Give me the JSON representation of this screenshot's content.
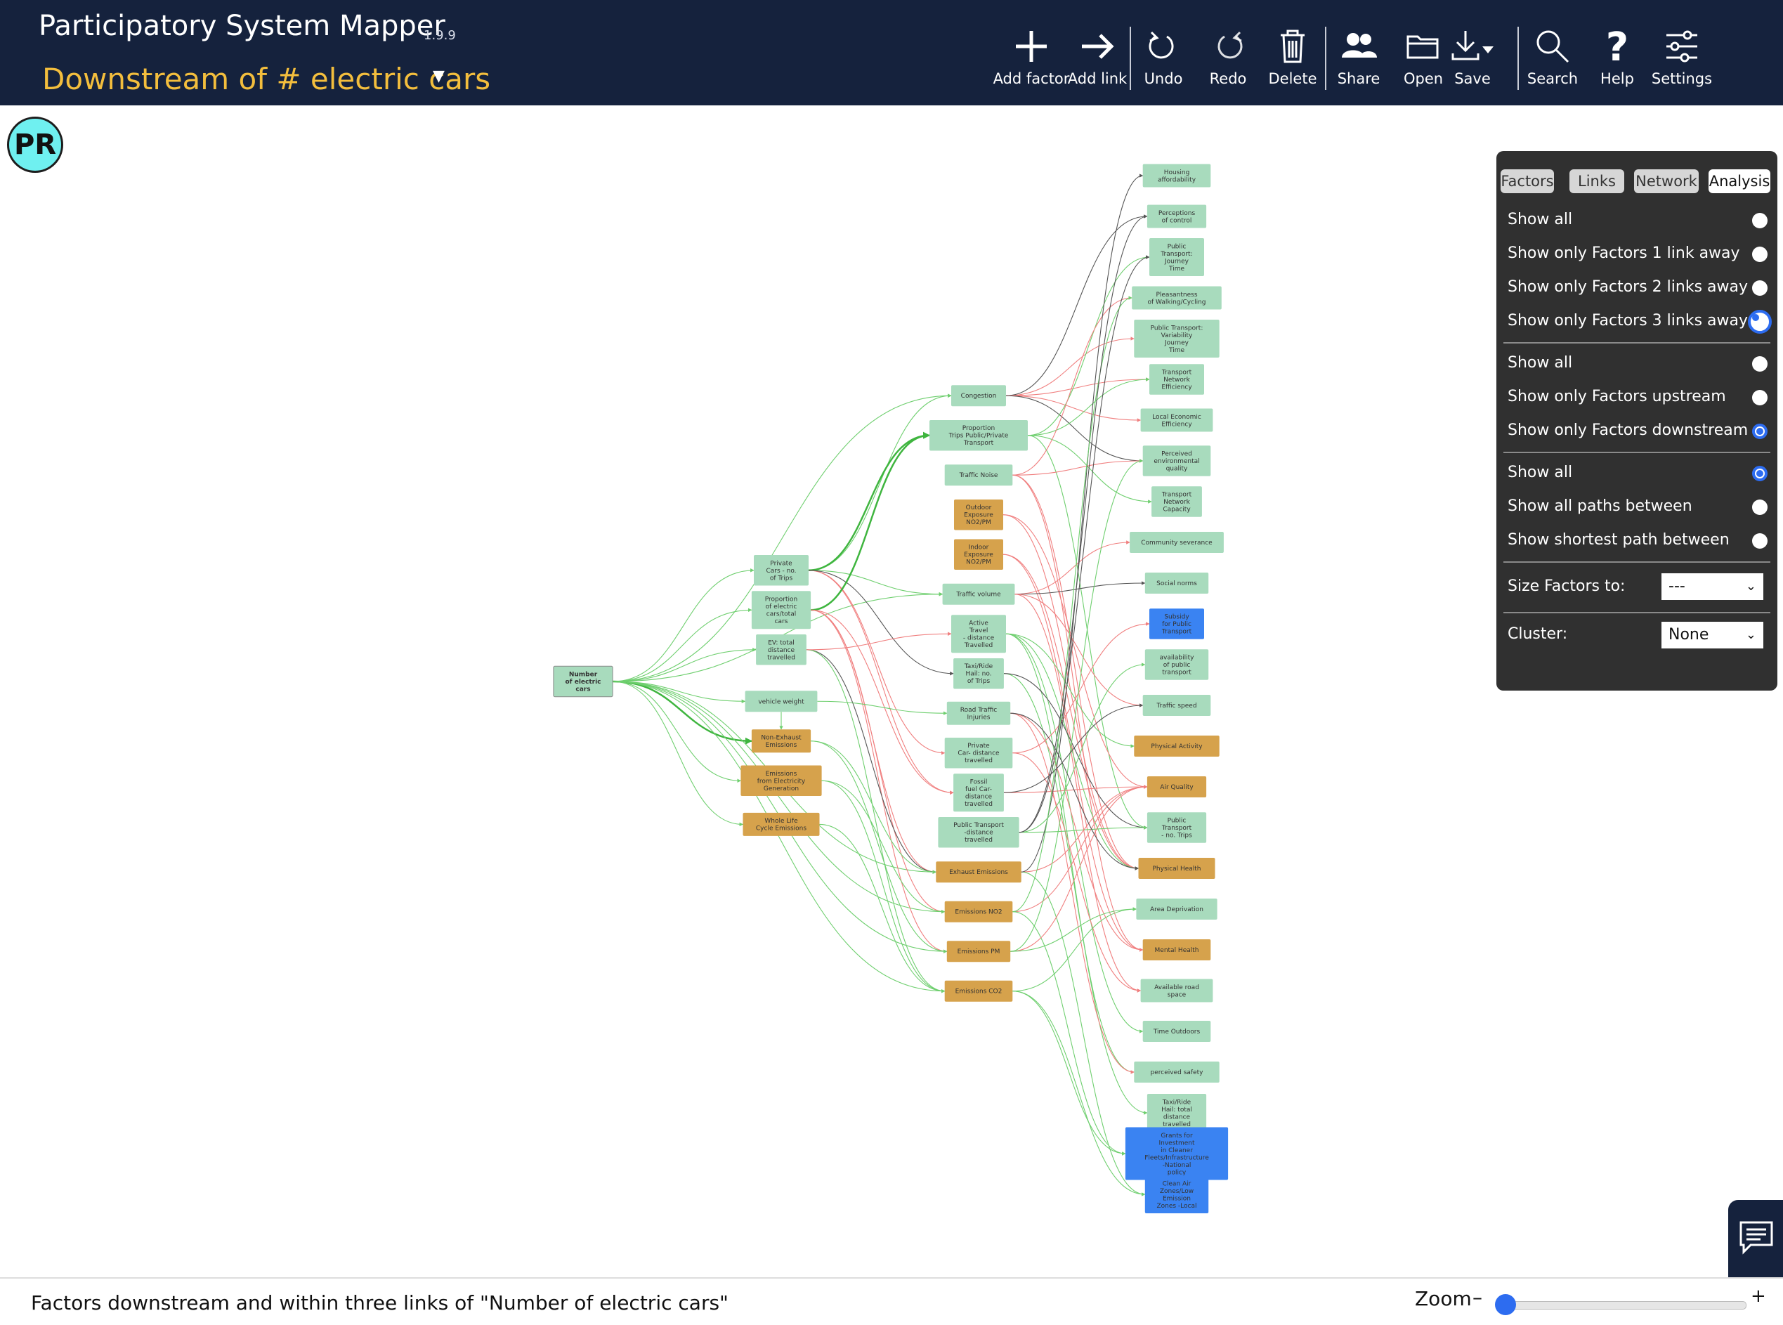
{
  "header": {
    "app_title": "Participatory System Mapper",
    "version": "1.9.9",
    "map_title": "Downstream of # electric cars"
  },
  "toolbar": {
    "add_factor": "Add factor",
    "add_link": "Add link",
    "undo": "Undo",
    "redo": "Redo",
    "delete": "Delete",
    "share": "Share",
    "open": "Open",
    "save": "Save",
    "search": "Search",
    "help": "Help",
    "settings": "Settings"
  },
  "avatar": {
    "initials": "PR"
  },
  "panel": {
    "tabs": [
      "Factors",
      "Links",
      "Network",
      "Analysis"
    ],
    "active_tab": "Analysis",
    "radius_options": [
      "Show all",
      "Show only Factors 1 link away",
      "Show only Factors 2 links away",
      "Show only Factors 3 links away"
    ],
    "direction_options": [
      "Show all",
      "Show only Factors upstream",
      "Show only Factors downstream"
    ],
    "path_options": [
      "Show all",
      "Show all paths between",
      "Show shortest path between"
    ],
    "size_label": "Size Factors to:",
    "size_value": "---",
    "cluster_label": "Cluster:",
    "cluster_value": "None"
  },
  "status": {
    "text": "Factors downstream and within three links of \"Number of electric cars\"",
    "zoom_label": "Zoom",
    "zoom_minus": "–",
    "zoom_plus": "+"
  },
  "colors": {
    "header_bg": "#15223d",
    "map_title": "#f3be3d",
    "node_green": "#a8dbbd",
    "node_orange": "#d6a24c",
    "node_blue": "#3a83f2",
    "link_green": "#6fcf6f",
    "link_red": "#f07f7f",
    "link_dark": "#555555",
    "accent": "#2d6cf0"
  },
  "network": {
    "nodes": [
      {
        "id": "n0",
        "label": [
          "Number",
          "of electric",
          "cars"
        ],
        "col": 0,
        "row": 8.2,
        "color": "green",
        "bold": true
      },
      {
        "id": "a1",
        "label": [
          "Private",
          "Cars - no.",
          "of Trips"
        ],
        "col": 1,
        "row": 6.8,
        "color": "green"
      },
      {
        "id": "a2",
        "label": [
          "Proportion",
          "of electric",
          "cars/total",
          "cars"
        ],
        "col": 1,
        "row": 7.3,
        "color": "green"
      },
      {
        "id": "a3",
        "label": [
          "EV: total",
          "distance",
          "travelled"
        ],
        "col": 1,
        "row": 7.8,
        "color": "green"
      },
      {
        "id": "a4",
        "label": [
          "vehicle weight"
        ],
        "col": 1,
        "row": 8.45,
        "color": "green"
      },
      {
        "id": "a5",
        "label": [
          "Non-Exhaust",
          "Emissions"
        ],
        "col": 1,
        "row": 8.95,
        "color": "orange"
      },
      {
        "id": "a6",
        "label": [
          "Emissions",
          "from Electricity",
          "Generation"
        ],
        "col": 1,
        "row": 9.45,
        "color": "orange"
      },
      {
        "id": "a7",
        "label": [
          "Whole Life",
          "Cycle Emissions"
        ],
        "col": 1,
        "row": 10.0,
        "color": "orange"
      },
      {
        "id": "b1",
        "label": [
          "Congestion"
        ],
        "col": 2,
        "row": 4.6,
        "color": "green"
      },
      {
        "id": "b2",
        "label": [
          "Proportion",
          "Trips Public/Private",
          "Transport"
        ],
        "col": 2,
        "row": 5.1,
        "color": "green"
      },
      {
        "id": "b3",
        "label": [
          "Traffic Noise"
        ],
        "col": 2,
        "row": 5.6,
        "color": "green"
      },
      {
        "id": "b4",
        "label": [
          "Outdoor",
          "Exposure",
          "NO2/PM"
        ],
        "col": 2,
        "row": 6.1,
        "color": "orange"
      },
      {
        "id": "b5",
        "label": [
          "Indoor",
          "Exposure",
          "NO2/PM"
        ],
        "col": 2,
        "row": 6.6,
        "color": "orange"
      },
      {
        "id": "b6",
        "label": [
          "Traffic volume"
        ],
        "col": 2,
        "row": 7.1,
        "color": "green"
      },
      {
        "id": "b7",
        "label": [
          "Active",
          "Travel",
          "- distance",
          "Travelled"
        ],
        "col": 2,
        "row": 7.6,
        "color": "green"
      },
      {
        "id": "b8",
        "label": [
          "Taxi/Ride",
          "Hail: no.",
          "of Trips"
        ],
        "col": 2,
        "row": 8.1,
        "color": "green"
      },
      {
        "id": "b9",
        "label": [
          "Road Traffic",
          "Injuries"
        ],
        "col": 2,
        "row": 8.6,
        "color": "green"
      },
      {
        "id": "b10",
        "label": [
          "Private",
          "Car- distance",
          "travelled"
        ],
        "col": 2,
        "row": 9.1,
        "color": "green"
      },
      {
        "id": "b11",
        "label": [
          "Fossil",
          "fuel Car-",
          "distance",
          "travelled"
        ],
        "col": 2,
        "row": 9.6,
        "color": "green"
      },
      {
        "id": "b12",
        "label": [
          "Public Transport",
          "-distance",
          "travelled"
        ],
        "col": 2,
        "row": 10.1,
        "color": "green"
      },
      {
        "id": "b13",
        "label": [
          "Exhaust Emissions"
        ],
        "col": 2,
        "row": 10.6,
        "color": "orange"
      },
      {
        "id": "b14",
        "label": [
          "Emissions NO2"
        ],
        "col": 2,
        "row": 11.1,
        "color": "orange"
      },
      {
        "id": "b15",
        "label": [
          "Emissions PM"
        ],
        "col": 2,
        "row": 11.6,
        "color": "orange"
      },
      {
        "id": "b16",
        "label": [
          "Emissions CO2"
        ],
        "col": 2,
        "row": 12.1,
        "color": "orange"
      },
      {
        "id": "c1",
        "label": [
          "Housing",
          "affordability"
        ],
        "col": 3,
        "row": 0,
        "color": "green"
      },
      {
        "id": "c2",
        "label": [
          "Perceptions",
          "of control"
        ],
        "col": 3,
        "row": 1,
        "color": "green"
      },
      {
        "id": "c3",
        "label": [
          "Public",
          "Transport:",
          "Journey",
          "Time"
        ],
        "col": 3,
        "row": 2,
        "color": "green"
      },
      {
        "id": "c4",
        "label": [
          "Pleasantness",
          "of Walking/Cycling"
        ],
        "col": 3,
        "row": 3,
        "color": "green"
      },
      {
        "id": "c5",
        "label": [
          "Public Transport:",
          "Variability",
          "Journey",
          "Time"
        ],
        "col": 3,
        "row": 4,
        "color": "green"
      },
      {
        "id": "c6",
        "label": [
          "Transport",
          "Network",
          "Efficiency"
        ],
        "col": 3,
        "row": 5,
        "color": "green"
      },
      {
        "id": "c7",
        "label": [
          "Local Economic",
          "Efficiency"
        ],
        "col": 3,
        "row": 6,
        "color": "green"
      },
      {
        "id": "c8",
        "label": [
          "Perceived",
          "environmental",
          "quality"
        ],
        "col": 3,
        "row": 7,
        "color": "green"
      },
      {
        "id": "c9",
        "label": [
          "Transport",
          "Network",
          "Capacity"
        ],
        "col": 3,
        "row": 8,
        "color": "green"
      },
      {
        "id": "c10",
        "label": [
          "Community severance"
        ],
        "col": 3,
        "row": 9,
        "color": "green"
      },
      {
        "id": "c11",
        "label": [
          "Social norms"
        ],
        "col": 3,
        "row": 10,
        "color": "green"
      },
      {
        "id": "c12",
        "label": [
          "Subsidy",
          "for Public",
          "Transport"
        ],
        "col": 3,
        "row": 11,
        "color": "blue"
      },
      {
        "id": "c13",
        "label": [
          "availability",
          "of public",
          "transport"
        ],
        "col": 3,
        "row": 12,
        "color": "green"
      },
      {
        "id": "c14",
        "label": [
          "Traffic speed"
        ],
        "col": 3,
        "row": 13,
        "color": "green"
      },
      {
        "id": "c15",
        "label": [
          "Physical Activity"
        ],
        "col": 3,
        "row": 14,
        "color": "orange"
      },
      {
        "id": "c16",
        "label": [
          "Air Quality"
        ],
        "col": 3,
        "row": 15,
        "color": "orange"
      },
      {
        "id": "c17",
        "label": [
          "Public",
          "Transport",
          "- no. Trips"
        ],
        "col": 3,
        "row": 16,
        "color": "green"
      },
      {
        "id": "c18",
        "label": [
          "Physical Health"
        ],
        "col": 3,
        "row": 17,
        "color": "orange"
      },
      {
        "id": "c19",
        "label": [
          "Area Deprivation"
        ],
        "col": 3,
        "row": 18,
        "color": "green"
      },
      {
        "id": "c20",
        "label": [
          "Mental Health"
        ],
        "col": 3,
        "row": 19,
        "color": "orange"
      },
      {
        "id": "c21",
        "label": [
          "Available road",
          "space"
        ],
        "col": 3,
        "row": 20,
        "color": "green"
      },
      {
        "id": "c22",
        "label": [
          "Time Outdoors"
        ],
        "col": 3,
        "row": 21,
        "color": "green"
      },
      {
        "id": "c23",
        "label": [
          "perceived  safety"
        ],
        "col": 3,
        "row": 22,
        "color": "green"
      },
      {
        "id": "c24",
        "label": [
          "Taxi/Ride",
          "Hail: total",
          "distance",
          "travelled"
        ],
        "col": 3,
        "row": 23,
        "color": "green"
      },
      {
        "id": "c25",
        "label": [
          "Grants for",
          "Investment",
          "in Cleaner",
          "Fleets/Infrastructure",
          "-National",
          "policy"
        ],
        "col": 3,
        "row": 24,
        "color": "blue"
      },
      {
        "id": "c26",
        "label": [
          "Clean Air",
          "Zones/Low",
          "Emission",
          "Zones -Local"
        ],
        "col": 3,
        "row": 25,
        "color": "blue"
      }
    ],
    "links": [
      [
        "n0",
        "a1",
        "g"
      ],
      [
        "n0",
        "a2",
        "g"
      ],
      [
        "n0",
        "a3",
        "g"
      ],
      [
        "n0",
        "a4",
        "g"
      ],
      [
        "n0",
        "a5",
        "G"
      ],
      [
        "n0",
        "a6",
        "g"
      ],
      [
        "n0",
        "a7",
        "g"
      ],
      [
        "n0",
        "b1",
        "g"
      ],
      [
        "n0",
        "b6",
        "g"
      ],
      [
        "n0",
        "b13",
        "g"
      ],
      [
        "n0",
        "b14",
        "g"
      ],
      [
        "n0",
        "b15",
        "g"
      ],
      [
        "n0",
        "b16",
        "g"
      ],
      [
        "a1",
        "b1",
        "g"
      ],
      [
        "a1",
        "b2",
        "G"
      ],
      [
        "a1",
        "b6",
        "g"
      ],
      [
        "a1",
        "b10",
        "r"
      ],
      [
        "a1",
        "b11",
        "r"
      ],
      [
        "a1",
        "b8",
        "d"
      ],
      [
        "a2",
        "b2",
        "G"
      ],
      [
        "a2",
        "b11",
        "r"
      ],
      [
        "a2",
        "b13",
        "r"
      ],
      [
        "a2",
        "b14",
        "r"
      ],
      [
        "a2",
        "b15",
        "r"
      ],
      [
        "a3",
        "b13",
        "d"
      ],
      [
        "a3",
        "b16",
        "g"
      ],
      [
        "a3",
        "b7",
        "r"
      ],
      [
        "a4",
        "a5",
        "g"
      ],
      [
        "a4",
        "b9",
        "g"
      ],
      [
        "a5",
        "b15",
        "g"
      ],
      [
        "a5",
        "b13",
        "g"
      ],
      [
        "a6",
        "b16",
        "g"
      ],
      [
        "a6",
        "b14",
        "g"
      ],
      [
        "a7",
        "b16",
        "g"
      ],
      [
        "b1",
        "c2",
        "d"
      ],
      [
        "b1",
        "c5",
        "r"
      ],
      [
        "b1",
        "c6",
        "r"
      ],
      [
        "b1",
        "c7",
        "r"
      ],
      [
        "b1",
        "c8",
        "d"
      ],
      [
        "b2",
        "c3",
        "g"
      ],
      [
        "b2",
        "c6",
        "g"
      ],
      [
        "b2",
        "c9",
        "g"
      ],
      [
        "b2",
        "c17",
        "g"
      ],
      [
        "b3",
        "c4",
        "r"
      ],
      [
        "b3",
        "c8",
        "r"
      ],
      [
        "b3",
        "c18",
        "r"
      ],
      [
        "b3",
        "c20",
        "r"
      ],
      [
        "b4",
        "c16",
        "r"
      ],
      [
        "b4",
        "c18",
        "r"
      ],
      [
        "b5",
        "c18",
        "r"
      ],
      [
        "b5",
        "c20",
        "r"
      ],
      [
        "b6",
        "c10",
        "r"
      ],
      [
        "b6",
        "c11",
        "d"
      ],
      [
        "b6",
        "c14",
        "r"
      ],
      [
        "b6",
        "c21",
        "r"
      ],
      [
        "b7",
        "c15",
        "g"
      ],
      [
        "b7",
        "c18",
        "g"
      ],
      [
        "b7",
        "c22",
        "g"
      ],
      [
        "b7",
        "c23",
        "g"
      ],
      [
        "b8",
        "c24",
        "g"
      ],
      [
        "b8",
        "c17",
        "d"
      ],
      [
        "b9",
        "c23",
        "r"
      ],
      [
        "b9",
        "c20",
        "r"
      ],
      [
        "b10",
        "c12",
        "r"
      ],
      [
        "b10",
        "c21",
        "r"
      ],
      [
        "b11",
        "c16",
        "r"
      ],
      [
        "b12",
        "c13",
        "g"
      ],
      [
        "b12",
        "c17",
        "g"
      ],
      [
        "b12",
        "c3",
        "d"
      ],
      [
        "b13",
        "c16",
        "r"
      ],
      [
        "b13",
        "c26",
        "g"
      ],
      [
        "b14",
        "c16",
        "r"
      ],
      [
        "b14",
        "c25",
        "g"
      ],
      [
        "b15",
        "c16",
        "r"
      ],
      [
        "b15",
        "c19",
        "g"
      ],
      [
        "b16",
        "c25",
        "g"
      ],
      [
        "b16",
        "c26",
        "g"
      ],
      [
        "b13",
        "c1",
        "d"
      ],
      [
        "b14",
        "c4",
        "g"
      ],
      [
        "b15",
        "c8",
        "g"
      ],
      [
        "b16",
        "c19",
        "g"
      ],
      [
        "b9",
        "c18",
        "d"
      ],
      [
        "b11",
        "c14",
        "d"
      ],
      [
        "b12",
        "c2",
        "d"
      ]
    ]
  }
}
